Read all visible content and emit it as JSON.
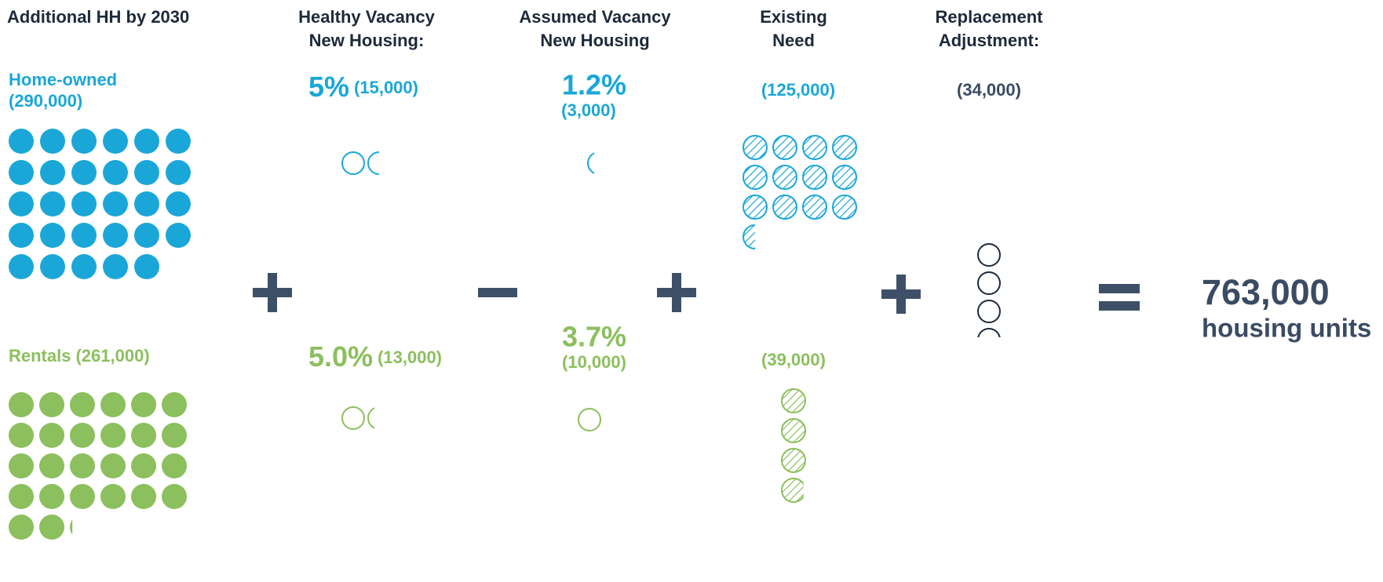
{
  "header": {
    "title": "Additional HH by 2030"
  },
  "headings": {
    "healthy_vacancy": [
      "Healthy Vacancy",
      "New Housing:"
    ],
    "assumed_vacancy": [
      "Assumed Vacancy",
      "New Housing"
    ],
    "existing_need": [
      "Existing",
      "Need"
    ],
    "replacement": [
      "Replacement",
      "Adjustment:"
    ]
  },
  "owned": {
    "label": "Home-owned",
    "households": {
      "value": 290000,
      "label": "(290,000)"
    },
    "healthy_vacancy": {
      "rate": "5%",
      "units": {
        "value": 15000,
        "label": "(15,000)"
      }
    },
    "assumed_vacancy": {
      "rate": "1.2%",
      "units": {
        "value": 3000,
        "label": "(3,000)"
      }
    },
    "existing_need": {
      "value": 125000,
      "label": "(125,000)"
    }
  },
  "rental": {
    "label": "Rentals",
    "households": {
      "value": 261000,
      "label": "(261,000)"
    },
    "healthy_vacancy": {
      "rate": "5.0%",
      "units": {
        "value": 13000,
        "label": "(13,000)"
      }
    },
    "assumed_vacancy": {
      "rate": "3.7%",
      "units": {
        "value": 10000,
        "label": "(10,000)"
      }
    },
    "existing_need": {
      "value": 39000,
      "label": "(39,000)"
    }
  },
  "replacement": {
    "value": 34000,
    "label": "(34,000)"
  },
  "result": {
    "total": "763,000",
    "unit": "housing units"
  }
}
